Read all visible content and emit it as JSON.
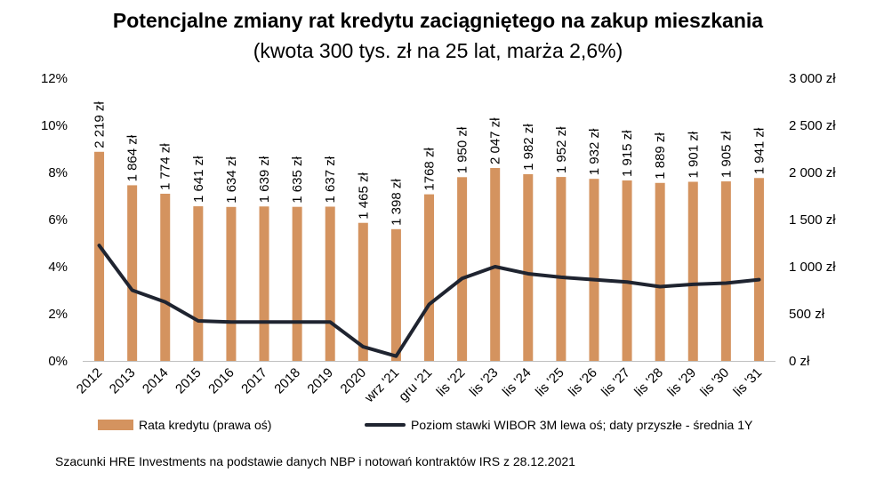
{
  "chart_data": {
    "type": "bar+line",
    "title": "Potencjalne zmiany rat kredytu zaciągniętego na zakup mieszkania",
    "subtitle": "(kwota 300 tys. zł na 25 lat, marża 2,6%)",
    "categories": [
      "2012",
      "2013",
      "2014",
      "2015",
      "2016",
      "2017",
      "2018",
      "2019",
      "2020",
      "wrz '21",
      "gru '21",
      "lis '22",
      "lis '23",
      "lis '24",
      "lis '25",
      "lis '26",
      "lis '27",
      "lis '28",
      "lis '29",
      "lis '30",
      "lis '31"
    ],
    "series": [
      {
        "name": "Rata kredytu (prawa oś)",
        "type": "bar",
        "axis": "right",
        "values": [
          2219,
          1864,
          1774,
          1641,
          1634,
          1639,
          1635,
          1637,
          1465,
          1398,
          1768,
          1950,
          2047,
          1982,
          1952,
          1932,
          1915,
          1889,
          1901,
          1905,
          1941
        ],
        "labels": [
          "2 219 zł",
          "1 864 zł",
          "1 774 zł",
          "1 641 zł",
          "1 634 zł",
          "1 639 zł",
          "1 635 zł",
          "1 637 zł",
          "1 465 zł",
          "1 398 zł",
          "1768 zł",
          "1 950 zł",
          "2 047 zł",
          "1 982 zł",
          "1 952 zł",
          "1 932 zł",
          "1 915 zł",
          "1 889 zł",
          "1 901 zł",
          "1 905 zł",
          "1 941 zł"
        ]
      },
      {
        "name": "Poziom stawki WIBOR 3M lewa oś; daty przyszłe - średnia 1Y",
        "type": "line",
        "axis": "left",
        "values": [
          4.9,
          3.0,
          2.5,
          1.7,
          1.65,
          1.65,
          1.65,
          1.65,
          0.6,
          0.2,
          2.4,
          3.5,
          4.0,
          3.7,
          3.55,
          3.45,
          3.35,
          3.15,
          3.25,
          3.3,
          3.45
        ]
      }
    ],
    "y_left": {
      "min": 0,
      "max": 12,
      "ticks": [
        "0%",
        "2%",
        "4%",
        "6%",
        "8%",
        "10%",
        "12%"
      ]
    },
    "y_right": {
      "min": 0,
      "max": 3000,
      "ticks": [
        "0 zł",
        "500 zł",
        "1 000 zł",
        "1 500 zł",
        "2 000 zł",
        "2 500 zł",
        "3 000 zł"
      ]
    },
    "grid": false,
    "legend_position": "bottom"
  },
  "colors": {
    "bar": "#d4935f",
    "line": "#1f2430",
    "axis": "#bfbfbf"
  },
  "source_note": "Szacunki HRE Investments na podstawie danych NBP i notowań kontraktów IRS z 28.12.2021"
}
